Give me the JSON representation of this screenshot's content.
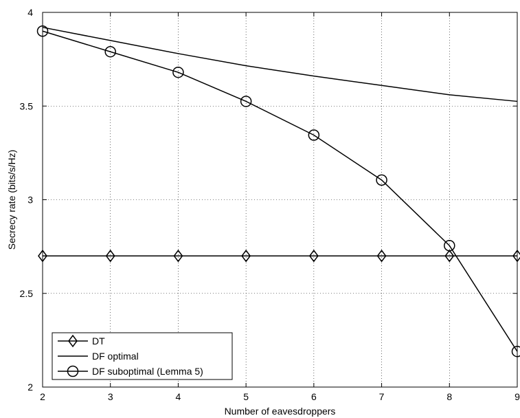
{
  "chart_data": {
    "type": "line",
    "title": "",
    "xlabel": "Number of eavesdroppers",
    "ylabel": "Secrecy rate (bits/s/Hz)",
    "xlim": [
      2,
      9
    ],
    "ylim": [
      2,
      4
    ],
    "xticks": [
      2,
      3,
      4,
      5,
      6,
      7,
      8,
      9
    ],
    "yticks": [
      2,
      2.5,
      3,
      3.5,
      4
    ],
    "ytick_labels": [
      "2",
      "2.5",
      "3",
      "3.5",
      "4"
    ],
    "grid": true,
    "legend_position": "bottom-left",
    "x": [
      2,
      3,
      4,
      5,
      6,
      7,
      8,
      9
    ],
    "series": [
      {
        "name": "DT",
        "marker": "diamond",
        "values": [
          2.7,
          2.7,
          2.7,
          2.7,
          2.7,
          2.7,
          2.7,
          2.7
        ]
      },
      {
        "name": "DF optimal",
        "marker": "none",
        "values": [
          3.92,
          3.85,
          3.78,
          3.715,
          3.66,
          3.61,
          3.56,
          3.525
        ]
      },
      {
        "name": "DF suboptimal (Lemma 5)",
        "marker": "circle",
        "values": [
          3.9,
          3.79,
          3.68,
          3.525,
          3.345,
          3.105,
          2.755,
          2.19
        ]
      }
    ]
  }
}
